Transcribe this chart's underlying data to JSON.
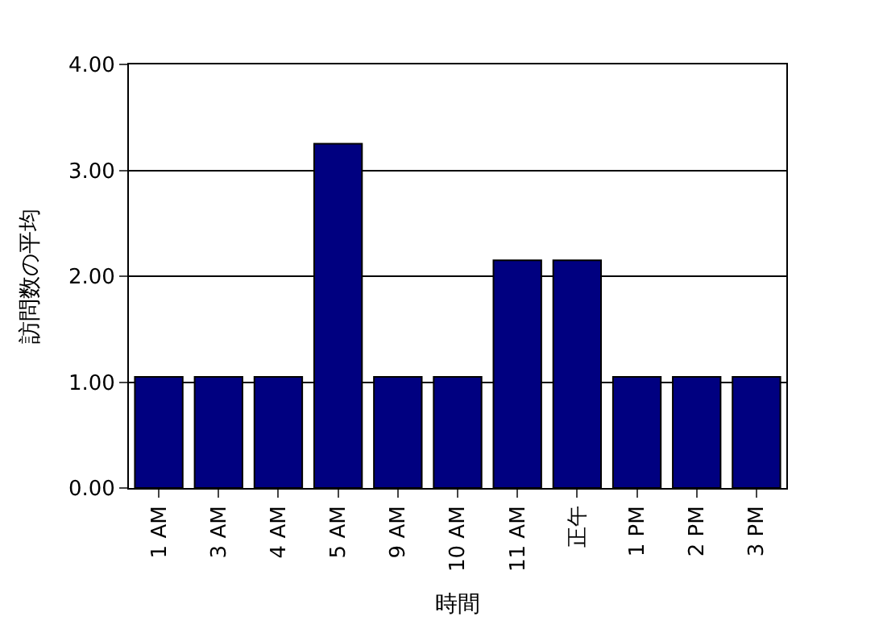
{
  "chart_data": {
    "type": "bar",
    "xlabel": "時間",
    "ylabel": "訪問数の平均",
    "categories": [
      "1 AM",
      "3 AM",
      "4 AM",
      "5 AM",
      "9 AM",
      "10 AM",
      "11 AM",
      "正午",
      "1 PM",
      "2 PM",
      "3 PM"
    ],
    "values": [
      1.05,
      1.05,
      1.05,
      3.25,
      1.05,
      1.05,
      2.15,
      2.15,
      1.05,
      1.05,
      1.05
    ],
    "color": "#000080",
    "ylim": [
      0,
      4
    ],
    "yticks": [
      {
        "value": 0,
        "label": "0.00"
      },
      {
        "value": 1,
        "label": "1.00"
      },
      {
        "value": 2,
        "label": "2.00"
      },
      {
        "value": 3,
        "label": "3.00"
      },
      {
        "value": 4,
        "label": "4.00"
      }
    ],
    "grid": "y"
  }
}
